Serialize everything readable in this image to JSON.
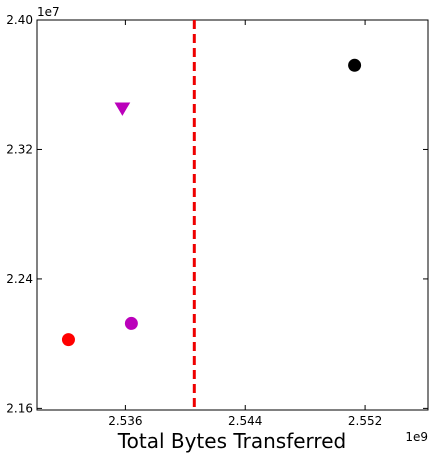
{
  "chart_data": {
    "type": "scatter",
    "title": "",
    "xlabel": "Total Bytes Transferred",
    "ylabel": "",
    "x_scale_label": "1e9",
    "y_scale_label": "1e7",
    "xlim": [
      2.5301,
      2.5562
    ],
    "ylim": [
      2.159,
      2.4
    ],
    "x_ticks": [
      2.536,
      2.544,
      2.552
    ],
    "x_tick_labels": [
      "2.536",
      "2.544",
      "2.552"
    ],
    "y_ticks": [
      2.16,
      2.24,
      2.32,
      2.4
    ],
    "y_tick_labels": [
      "2.16",
      "2.24",
      "2.32",
      "2.40"
    ],
    "grid": false,
    "vline": {
      "x": 2.5406,
      "color": "#ee0000",
      "style": "dashed"
    },
    "points": [
      {
        "x": 2.5322,
        "y": 2.2025,
        "color": "#ff0000",
        "marker": "circle"
      },
      {
        "x": 2.5364,
        "y": 2.2125,
        "color": "#bb00bb",
        "marker": "circle"
      },
      {
        "x": 2.5358,
        "y": 2.3455,
        "color": "#bb00bb",
        "marker": "triangle-down"
      },
      {
        "x": 2.5513,
        "y": 2.372,
        "color": "#000000",
        "marker": "circle"
      }
    ]
  }
}
